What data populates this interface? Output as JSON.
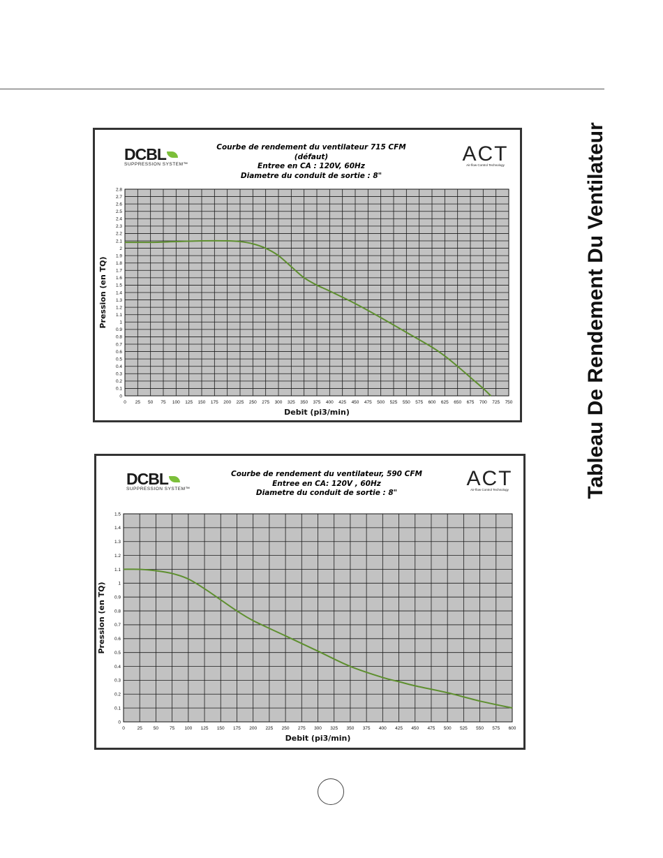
{
  "side_heading": "Tableau De Rendement Du Ventilateur",
  "logos": {
    "dcbl_word": "DCBL",
    "dcbl_sub": "SUPPRESSION SYSTEM™",
    "act_word": "ACT",
    "act_sub": "Air-flow Control Technology"
  },
  "colors": {
    "curve": "#5e8f2f",
    "plot_bg": "#c2c2c2",
    "grid": "#1a1a1a"
  },
  "chart_data": [
    {
      "type": "line",
      "title_lines": [
        "Courbe de rendement du ventilateur 715 CFM (défaut)",
        "Entree en CA : 120V, 60Hz",
        "Diametre du conduit de sortie : 8\""
      ],
      "xlabel": "Debit (pi3/min)",
      "ylabel": "Pression (en TQ)",
      "xlim": [
        0,
        750
      ],
      "ylim": [
        0,
        2.8
      ],
      "x_ticks": [
        0,
        25,
        50,
        75,
        100,
        125,
        150,
        175,
        200,
        225,
        250,
        275,
        300,
        325,
        350,
        375,
        400,
        425,
        450,
        475,
        500,
        525,
        550,
        575,
        600,
        625,
        650,
        675,
        700,
        725,
        750
      ],
      "y_ticks": [
        "0",
        "0.1",
        "0.2",
        "0.3",
        "0.4",
        "0.5",
        "0.6",
        "0.7",
        "0.8",
        "0.9",
        "1",
        "1.1",
        "1.2",
        "1.3",
        "1.4",
        "1.5",
        "1.6",
        "1.7",
        "1.8",
        "1.9",
        "2",
        "2.1",
        "2.2",
        "2.3",
        "2.4",
        "2.5",
        "2.6",
        "2.7",
        "2.8"
      ],
      "grid": true,
      "series": [
        {
          "x": [
            0,
            50,
            100,
            150,
            200,
            225,
            250,
            275,
            300,
            325,
            350,
            375,
            400,
            450,
            500,
            550,
            600,
            625,
            650,
            675,
            700,
            715
          ],
          "y": [
            2.08,
            2.08,
            2.09,
            2.1,
            2.1,
            2.09,
            2.06,
            2.0,
            1.9,
            1.75,
            1.6,
            1.5,
            1.42,
            1.25,
            1.06,
            0.86,
            0.66,
            0.54,
            0.4,
            0.25,
            0.1,
            0.0
          ]
        }
      ]
    },
    {
      "type": "line",
      "title_lines": [
        "Courbe de rendement du ventilateur, 590 CFM",
        "Entree en CA: 120V , 60Hz",
        "Diametre du conduit de sortie : 8\""
      ],
      "xlabel": "Debit (pi3/min)",
      "ylabel": "Pression (en TQ)",
      "xlim": [
        0,
        600
      ],
      "ylim": [
        0,
        1.5
      ],
      "x_ticks": [
        0,
        25,
        50,
        75,
        100,
        125,
        150,
        175,
        200,
        225,
        250,
        275,
        300,
        325,
        350,
        375,
        400,
        425,
        450,
        475,
        500,
        525,
        550,
        575,
        600
      ],
      "y_ticks": [
        "0",
        "0.1",
        "0.2",
        "0.3",
        "0.4",
        "0.5",
        "0.6",
        "0.7",
        "0.8",
        "0.9",
        "1",
        "1.1",
        "1.2",
        "1.3",
        "1.4",
        "1.5"
      ],
      "grid": true,
      "series": [
        {
          "x": [
            0,
            25,
            50,
            75,
            100,
            125,
            150,
            175,
            200,
            250,
            300,
            350,
            400,
            425,
            450,
            500,
            550,
            600
          ],
          "y": [
            1.1,
            1.1,
            1.09,
            1.07,
            1.03,
            0.96,
            0.88,
            0.8,
            0.73,
            0.62,
            0.51,
            0.4,
            0.32,
            0.29,
            0.26,
            0.21,
            0.15,
            0.1
          ]
        }
      ]
    }
  ]
}
